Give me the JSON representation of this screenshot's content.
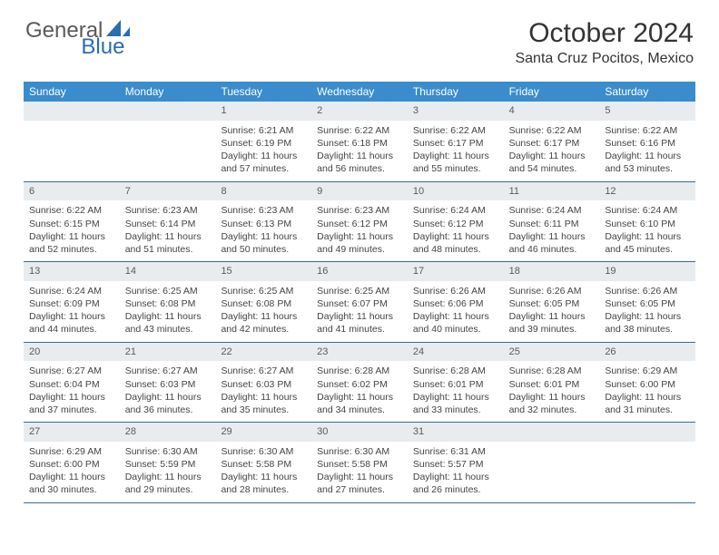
{
  "logo": {
    "text1": "General",
    "text2": "Blue"
  },
  "title": "October 2024",
  "location": "Santa Cruz Pocitos, Mexico",
  "colors": {
    "header_bg": "#3b8ccc",
    "header_text": "#ffffff",
    "daynum_bg": "#e8ecef",
    "daynum_text": "#5a5a5a",
    "body_text": "#444444",
    "row_border": "#3b6a94",
    "logo_general": "#5a5a5a",
    "logo_blue": "#2a6db0",
    "title_text": "#333333"
  },
  "weekdays": [
    "Sunday",
    "Monday",
    "Tuesday",
    "Wednesday",
    "Thursday",
    "Friday",
    "Saturday"
  ],
  "weeks": [
    [
      {
        "empty": true
      },
      {
        "empty": true
      },
      {
        "day": "1",
        "sunrise": "Sunrise: 6:21 AM",
        "sunset": "Sunset: 6:19 PM",
        "daylight": "Daylight: 11 hours and 57 minutes."
      },
      {
        "day": "2",
        "sunrise": "Sunrise: 6:22 AM",
        "sunset": "Sunset: 6:18 PM",
        "daylight": "Daylight: 11 hours and 56 minutes."
      },
      {
        "day": "3",
        "sunrise": "Sunrise: 6:22 AM",
        "sunset": "Sunset: 6:17 PM",
        "daylight": "Daylight: 11 hours and 55 minutes."
      },
      {
        "day": "4",
        "sunrise": "Sunrise: 6:22 AM",
        "sunset": "Sunset: 6:17 PM",
        "daylight": "Daylight: 11 hours and 54 minutes."
      },
      {
        "day": "5",
        "sunrise": "Sunrise: 6:22 AM",
        "sunset": "Sunset: 6:16 PM",
        "daylight": "Daylight: 11 hours and 53 minutes."
      }
    ],
    [
      {
        "day": "6",
        "sunrise": "Sunrise: 6:22 AM",
        "sunset": "Sunset: 6:15 PM",
        "daylight": "Daylight: 11 hours and 52 minutes."
      },
      {
        "day": "7",
        "sunrise": "Sunrise: 6:23 AM",
        "sunset": "Sunset: 6:14 PM",
        "daylight": "Daylight: 11 hours and 51 minutes."
      },
      {
        "day": "8",
        "sunrise": "Sunrise: 6:23 AM",
        "sunset": "Sunset: 6:13 PM",
        "daylight": "Daylight: 11 hours and 50 minutes."
      },
      {
        "day": "9",
        "sunrise": "Sunrise: 6:23 AM",
        "sunset": "Sunset: 6:12 PM",
        "daylight": "Daylight: 11 hours and 49 minutes."
      },
      {
        "day": "10",
        "sunrise": "Sunrise: 6:24 AM",
        "sunset": "Sunset: 6:12 PM",
        "daylight": "Daylight: 11 hours and 48 minutes."
      },
      {
        "day": "11",
        "sunrise": "Sunrise: 6:24 AM",
        "sunset": "Sunset: 6:11 PM",
        "daylight": "Daylight: 11 hours and 46 minutes."
      },
      {
        "day": "12",
        "sunrise": "Sunrise: 6:24 AM",
        "sunset": "Sunset: 6:10 PM",
        "daylight": "Daylight: 11 hours and 45 minutes."
      }
    ],
    [
      {
        "day": "13",
        "sunrise": "Sunrise: 6:24 AM",
        "sunset": "Sunset: 6:09 PM",
        "daylight": "Daylight: 11 hours and 44 minutes."
      },
      {
        "day": "14",
        "sunrise": "Sunrise: 6:25 AM",
        "sunset": "Sunset: 6:08 PM",
        "daylight": "Daylight: 11 hours and 43 minutes."
      },
      {
        "day": "15",
        "sunrise": "Sunrise: 6:25 AM",
        "sunset": "Sunset: 6:08 PM",
        "daylight": "Daylight: 11 hours and 42 minutes."
      },
      {
        "day": "16",
        "sunrise": "Sunrise: 6:25 AM",
        "sunset": "Sunset: 6:07 PM",
        "daylight": "Daylight: 11 hours and 41 minutes."
      },
      {
        "day": "17",
        "sunrise": "Sunrise: 6:26 AM",
        "sunset": "Sunset: 6:06 PM",
        "daylight": "Daylight: 11 hours and 40 minutes."
      },
      {
        "day": "18",
        "sunrise": "Sunrise: 6:26 AM",
        "sunset": "Sunset: 6:05 PM",
        "daylight": "Daylight: 11 hours and 39 minutes."
      },
      {
        "day": "19",
        "sunrise": "Sunrise: 6:26 AM",
        "sunset": "Sunset: 6:05 PM",
        "daylight": "Daylight: 11 hours and 38 minutes."
      }
    ],
    [
      {
        "day": "20",
        "sunrise": "Sunrise: 6:27 AM",
        "sunset": "Sunset: 6:04 PM",
        "daylight": "Daylight: 11 hours and 37 minutes."
      },
      {
        "day": "21",
        "sunrise": "Sunrise: 6:27 AM",
        "sunset": "Sunset: 6:03 PM",
        "daylight": "Daylight: 11 hours and 36 minutes."
      },
      {
        "day": "22",
        "sunrise": "Sunrise: 6:27 AM",
        "sunset": "Sunset: 6:03 PM",
        "daylight": "Daylight: 11 hours and 35 minutes."
      },
      {
        "day": "23",
        "sunrise": "Sunrise: 6:28 AM",
        "sunset": "Sunset: 6:02 PM",
        "daylight": "Daylight: 11 hours and 34 minutes."
      },
      {
        "day": "24",
        "sunrise": "Sunrise: 6:28 AM",
        "sunset": "Sunset: 6:01 PM",
        "daylight": "Daylight: 11 hours and 33 minutes."
      },
      {
        "day": "25",
        "sunrise": "Sunrise: 6:28 AM",
        "sunset": "Sunset: 6:01 PM",
        "daylight": "Daylight: 11 hours and 32 minutes."
      },
      {
        "day": "26",
        "sunrise": "Sunrise: 6:29 AM",
        "sunset": "Sunset: 6:00 PM",
        "daylight": "Daylight: 11 hours and 31 minutes."
      }
    ],
    [
      {
        "day": "27",
        "sunrise": "Sunrise: 6:29 AM",
        "sunset": "Sunset: 6:00 PM",
        "daylight": "Daylight: 11 hours and 30 minutes."
      },
      {
        "day": "28",
        "sunrise": "Sunrise: 6:30 AM",
        "sunset": "Sunset: 5:59 PM",
        "daylight": "Daylight: 11 hours and 29 minutes."
      },
      {
        "day": "29",
        "sunrise": "Sunrise: 6:30 AM",
        "sunset": "Sunset: 5:58 PM",
        "daylight": "Daylight: 11 hours and 28 minutes."
      },
      {
        "day": "30",
        "sunrise": "Sunrise: 6:30 AM",
        "sunset": "Sunset: 5:58 PM",
        "daylight": "Daylight: 11 hours and 27 minutes."
      },
      {
        "day": "31",
        "sunrise": "Sunrise: 6:31 AM",
        "sunset": "Sunset: 5:57 PM",
        "daylight": "Daylight: 11 hours and 26 minutes."
      },
      {
        "empty": true
      },
      {
        "empty": true
      }
    ]
  ]
}
